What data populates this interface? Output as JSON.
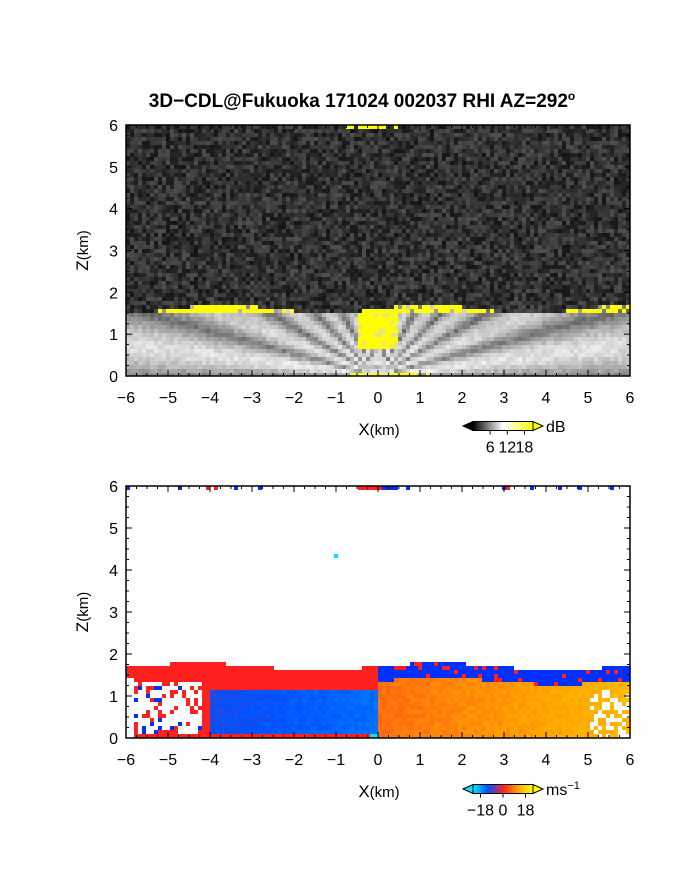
{
  "title": {
    "main": "3D−CDL@Fukuoka 171024 002037 RHI AZ=292",
    "sup": "o"
  },
  "chart_data": [
    {
      "type": "heatmap",
      "variable": "reflectivity",
      "xlabel": {
        "main": "X",
        "unit": "(km)"
      },
      "ylabel": {
        "main": "Z",
        "unit": "(km)"
      },
      "xlim": [
        -6,
        6
      ],
      "ylim": [
        0,
        6
      ],
      "xticks": [
        "−6",
        "−5",
        "−4",
        "−3",
        "−2",
        "−1",
        "0",
        "1",
        "2",
        "3",
        "4",
        "5",
        "6"
      ],
      "yticks": [
        "0",
        "1",
        "2",
        "3",
        "4",
        "5",
        "6"
      ],
      "boundary_layer_top_km": 1.6,
      "colorbar": {
        "unit": "dB",
        "ticks": [
          "6",
          "12",
          "18"
        ],
        "range": [
          0,
          21
        ],
        "colors": [
          "#000000",
          "#ffffff",
          "#ffff00"
        ]
      }
    },
    {
      "type": "heatmap",
      "variable": "doppler_velocity",
      "xlabel": {
        "main": "X",
        "unit": "(km)"
      },
      "ylabel": {
        "main": "Z",
        "unit": "(km)"
      },
      "xlim": [
        -6,
        6
      ],
      "ylim": [
        0,
        6
      ],
      "xticks": [
        "−6",
        "−5",
        "−4",
        "−3",
        "−2",
        "−1",
        "0",
        "1",
        "2",
        "3",
        "4",
        "5",
        "6"
      ],
      "yticks": [
        "0",
        "1",
        "2",
        "3",
        "4",
        "5",
        "6"
      ],
      "boundary_layer_top_km": 1.6,
      "colorbar": {
        "unit": "ms",
        "unit_sup": "−1",
        "ticks": [
          "−18",
          "0",
          "18"
        ],
        "range": [
          -24,
          24
        ],
        "colors": [
          "#00e5ff",
          "#0050ff",
          "#ff2020",
          "#ffa500",
          "#ffff00"
        ]
      }
    }
  ]
}
